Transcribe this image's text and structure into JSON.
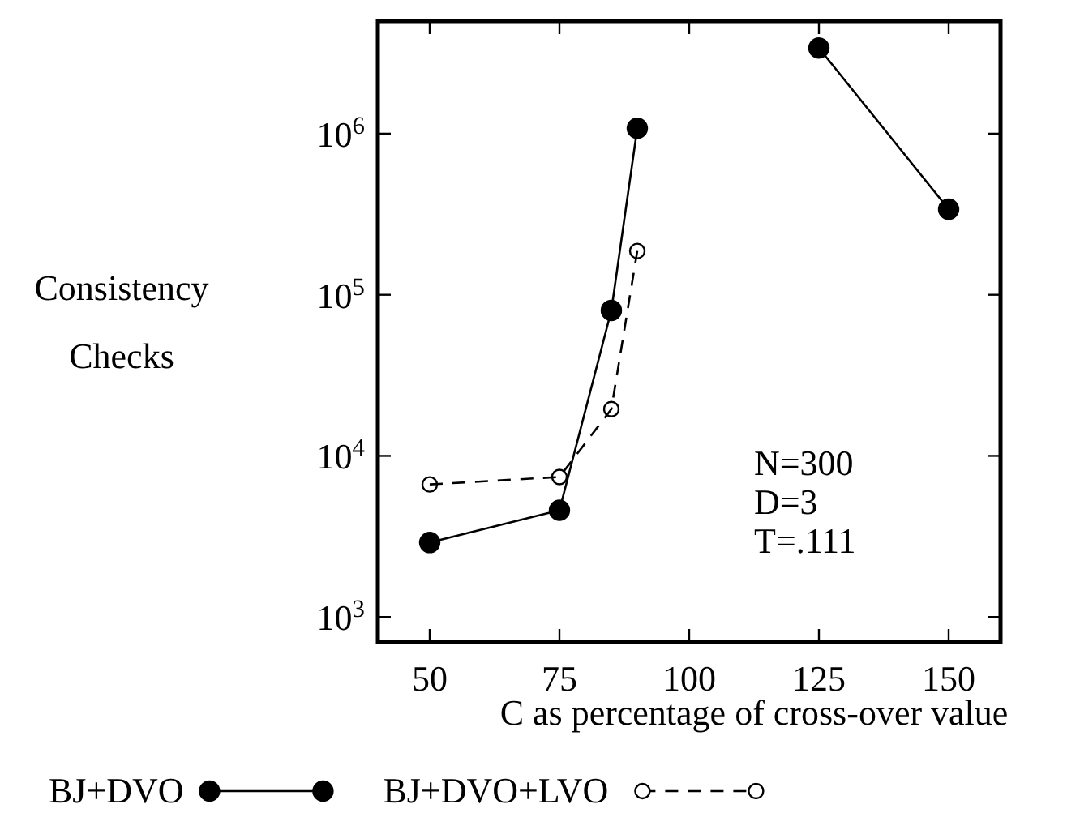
{
  "chart_data": {
    "type": "line",
    "xlabel": "C as percentage of cross-over value",
    "ylabel": "Consistency Checks",
    "log": "y",
    "xlim": [
      40,
      160
    ],
    "xticks": [
      50,
      75,
      100,
      125,
      150
    ],
    "ylim": [
      700,
      5000000
    ],
    "yticks": [
      {
        "value": 1000,
        "label": "10$^{3}$"
      },
      {
        "value": 10000,
        "label": "10$^{4}$"
      },
      {
        "value": 100000,
        "label": "10$^{5}$"
      },
      {
        "value": 1000000,
        "label": "10$^{6}$"
      }
    ],
    "grid": false,
    "legend": "bottom",
    "marker": "circle",
    "annotations": [
      "N=300",
      "D=3",
      "T=.111"
    ],
    "series": [
      {
        "name": "BJ+DVO",
        "color": "#000000",
        "line_style": "solid",
        "x": [
          50,
          75,
          85,
          90,
          100,
          125,
          150
        ],
        "values": [
          2900,
          4600,
          80000,
          1080000,
          null,
          3400000,
          340000
        ]
      },
      {
        "name": "BJ+DVO+LVO",
        "color": "#000000",
        "line_style": "dashed",
        "x": [
          50,
          75,
          85,
          90
        ],
        "values": [
          6650,
          7400,
          19500,
          187000
        ]
      }
    ]
  }
}
